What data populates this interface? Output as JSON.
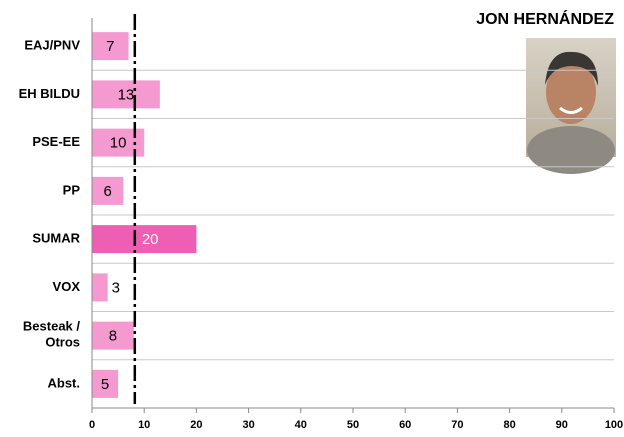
{
  "chart_data": {
    "type": "hbar",
    "title": "JON HERNÁNDEZ",
    "categories": [
      "EAJ/PNV",
      "EH BILDU",
      "PSE-EE",
      "PP",
      "SUMAR",
      "VOX",
      "Besteak /\nOtros",
      "Abst."
    ],
    "values": [
      7,
      13,
      10,
      6,
      20,
      3,
      8,
      5
    ],
    "colors": [
      "#f49ad0",
      "#f49ad0",
      "#f49ad0",
      "#f49ad0",
      "#ee5fb4",
      "#f49ad0",
      "#f49ad0",
      "#f49ad0"
    ],
    "reference_line": 8.2,
    "xlim": [
      0,
      100
    ],
    "xticks": [
      0,
      10,
      20,
      30,
      40,
      50,
      60,
      70,
      80,
      90,
      100
    ],
    "grid": true
  }
}
